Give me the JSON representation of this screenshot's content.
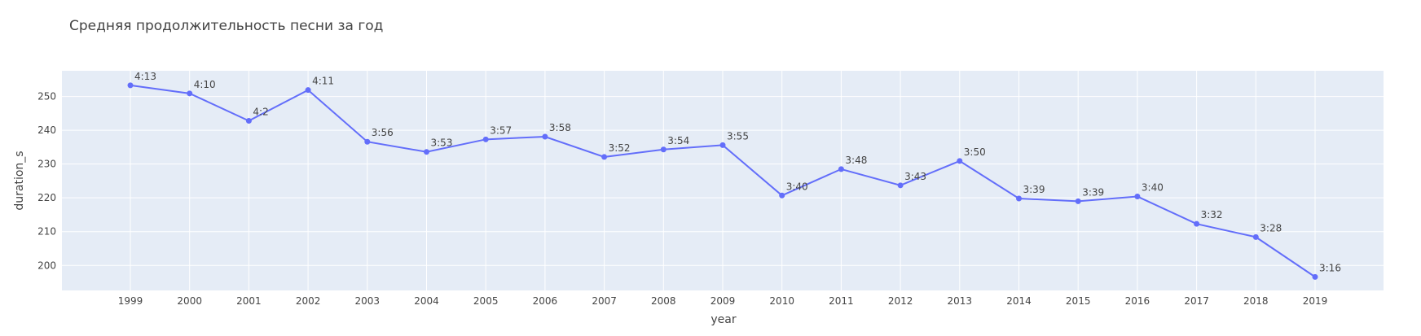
{
  "chart_data": {
    "type": "line",
    "title": "Средняя продолжительность песни за год",
    "xlabel": "year",
    "ylabel": "duration_s",
    "x": [
      "1999",
      "2000",
      "2001",
      "2002",
      "2003",
      "2004",
      "2005",
      "2006",
      "2007",
      "2008",
      "2009",
      "2010",
      "2011",
      "2012",
      "2013",
      "2014",
      "2015",
      "2016",
      "2017",
      "2018",
      "2019"
    ],
    "y": [
      253.3,
      250.9,
      242.8,
      251.9,
      236.6,
      233.6,
      237.3,
      238.1,
      232.1,
      234.3,
      235.6,
      220.7,
      228.5,
      223.7,
      230.9,
      219.8,
      219.0,
      220.4,
      212.3,
      208.4,
      196.6
    ],
    "labels": [
      "4:13",
      "4:10",
      "4:2",
      "4:11",
      "3:56",
      "3:53",
      "3:57",
      "3:58",
      "3:52",
      "3:54",
      "3:55",
      "3:40",
      "3:48",
      "3:43",
      "3:50",
      "3:39",
      "3:39",
      "3:40",
      "3:32",
      "3:28",
      "3:16"
    ],
    "ylim": [
      192.6,
      257.6
    ],
    "yticks": [
      200,
      210,
      220,
      230,
      240,
      250
    ],
    "grid": true,
    "colors": {
      "line": "#636efa",
      "plot_bg": "#e5ecf6",
      "grid": "#ffffff",
      "text": "#444444"
    }
  }
}
